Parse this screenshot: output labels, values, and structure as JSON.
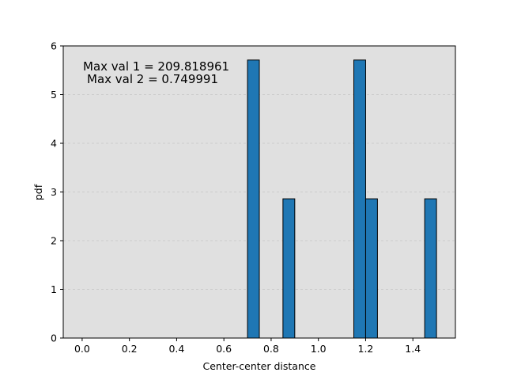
{
  "chart_data": {
    "type": "bar",
    "xlabel": "Center-center distance",
    "ylabel": "pdf",
    "xlim": [
      -0.08,
      1.58
    ],
    "ylim": [
      0,
      6
    ],
    "xticks": [
      "0.0",
      "0.2",
      "0.4",
      "0.6",
      "0.8",
      "1.0",
      "1.2",
      "1.4"
    ],
    "yticks": [
      "0",
      "1",
      "2",
      "3",
      "4",
      "5",
      "6"
    ],
    "grid": "y-dashed",
    "background": "#e0e0e0",
    "bar_color": "#1f77b4",
    "edge_color": "#000000",
    "bins": [
      {
        "x0": 0.7,
        "x1": 0.75,
        "value": 5.71
      },
      {
        "x0": 0.85,
        "x1": 0.9,
        "value": 2.86
      },
      {
        "x0": 1.15,
        "x1": 1.2,
        "value": 5.71
      },
      {
        "x0": 1.2,
        "x1": 1.25,
        "value": 2.86
      },
      {
        "x0": 1.45,
        "x1": 1.5,
        "value": 2.86
      }
    ],
    "annotations": [
      "Max val 1 = 209.818961",
      "Max val 2 = 0.749991"
    ]
  }
}
